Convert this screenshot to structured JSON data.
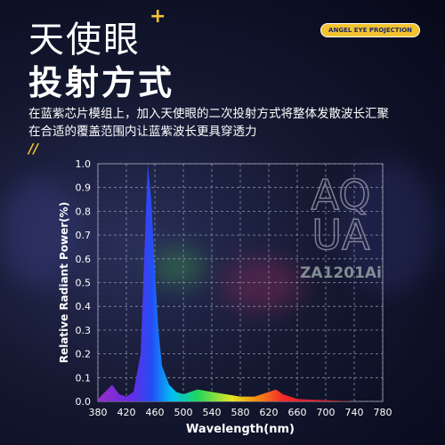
{
  "header": {
    "title": "天使眼",
    "title_mark": "+",
    "subtitle": "投射方式",
    "badge": "ANGEL EYE PROJECTION",
    "description": [
      "在蓝紫芯片模组上，加入天使眼的二次投射方式将整体发散波长汇聚",
      "在合适的覆盖范围内让蓝紫波长更具穿透力"
    ],
    "divider": "//"
  },
  "watermark": {
    "logo": [
      "AQ",
      "UA"
    ],
    "model": "ZA1201Ai"
  },
  "chart_data": {
    "type": "area",
    "x_label": "Wavelength(nm)",
    "y_label": "Relative Radiant Power(%)",
    "x": [
      380,
      390,
      400,
      410,
      420,
      430,
      440,
      445,
      450,
      455,
      460,
      465,
      470,
      480,
      490,
      500,
      520,
      540,
      560,
      580,
      600,
      620,
      630,
      640,
      660,
      700,
      740,
      780
    ],
    "values": [
      0.01,
      0.04,
      0.07,
      0.03,
      0.02,
      0.04,
      0.2,
      0.6,
      1.0,
      0.85,
      0.55,
      0.3,
      0.15,
      0.07,
      0.04,
      0.03,
      0.05,
      0.04,
      0.03,
      0.02,
      0.02,
      0.04,
      0.05,
      0.03,
      0.01,
      0.005,
      0,
      0
    ],
    "xlim": [
      380,
      780
    ],
    "xticks": [
      380,
      420,
      460,
      500,
      540,
      580,
      620,
      660,
      700,
      740,
      780
    ],
    "ylim": [
      0,
      1
    ],
    "yticks": [
      {
        "value": 0,
        "label": "0.0"
      },
      0.1,
      0.2,
      0.3,
      0.4,
      0.5,
      0.6,
      0.7,
      0.8,
      0.9,
      {
        "value": 1,
        "label": "1.0"
      }
    ],
    "grid": true
  }
}
